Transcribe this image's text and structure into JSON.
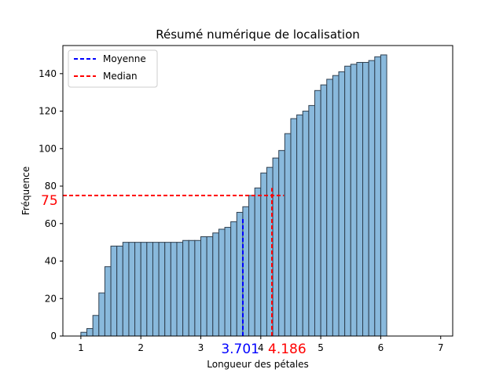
{
  "chart_data": {
    "type": "bar",
    "title": "Résumé numérique de localisation",
    "xlabel": "Longueur des pétales",
    "ylabel": "Fréquence",
    "xlim": [
      0.7,
      7.2
    ],
    "ylim": [
      0,
      155
    ],
    "xticks": [
      1,
      2,
      3,
      4,
      5,
      6,
      7
    ],
    "yticks": [
      0,
      20,
      40,
      60,
      80,
      100,
      120,
      140
    ],
    "bin_start": 1.0,
    "bin_width": 0.1,
    "bar_color": "#89b9dc",
    "bar_edge": "#2f3f4f",
    "values": [
      2,
      4,
      11,
      23,
      37,
      48,
      48,
      50,
      50,
      50,
      50,
      50,
      50,
      50,
      50,
      50,
      50,
      51,
      51,
      51,
      53,
      53,
      55,
      57,
      58,
      61,
      66,
      69,
      75,
      79,
      87,
      90,
      95,
      99,
      108,
      116,
      118,
      120,
      123,
      131,
      134,
      137,
      139,
      141,
      144,
      145,
      146,
      146,
      147,
      149,
      150
    ],
    "legend": {
      "position": "top-left",
      "entries": [
        {
          "label": "Moyenne",
          "color": "#0000ff",
          "style": "dashed"
        },
        {
          "label": "Median",
          "color": "#ff0000",
          "style": "dashed"
        }
      ]
    },
    "annotations": {
      "mean": {
        "value": 3.701,
        "label": "3.701",
        "color": "#0000ff",
        "line_top": 63
      },
      "median": {
        "value": 4.186,
        "label": "4.186",
        "color": "#ff0000",
        "line_top": 79
      },
      "count_line": {
        "value": 75,
        "label": "75",
        "color": "#ff0000"
      }
    }
  }
}
